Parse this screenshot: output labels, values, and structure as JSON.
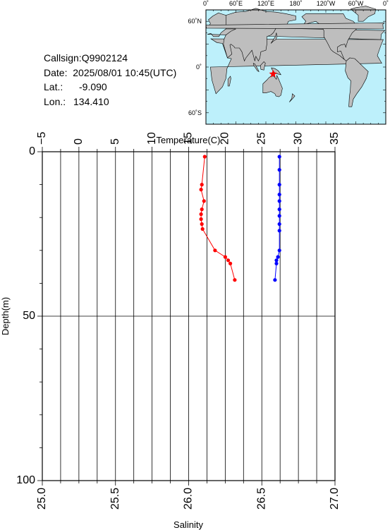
{
  "info": {
    "callsign": "Callsign:Q9902124",
    "date": "Date:  2025/08/01 10:45(UTC)",
    "lat_label": "Lat.:",
    "lat_value": "-9.090",
    "lon_label": "Lon.:",
    "lon_value": "134.410"
  },
  "map": {
    "top_labels": [
      "0˚",
      "60˚E",
      "120˚E",
      "180˚",
      "120˚W",
      "60˚W",
      "0˚"
    ],
    "left_labels": [
      "60˚N",
      "0˚",
      "60˚S"
    ],
    "ocean_color": "#bdf0fb",
    "land_color": "#bebebe",
    "marker_color": "#ff0000",
    "marker_symbol": "star",
    "marker_lon": 134.41,
    "marker_lat": -9.09
  },
  "chart_data": {
    "type": "scatter",
    "title": "",
    "xlabel_top": "Temperature(C)",
    "xlabel_bottom": "Salinity",
    "ylabel": "Depth(m)",
    "temperature_ticks": [
      "−5",
      "0",
      "5",
      "10",
      "15",
      "20",
      "25",
      "30",
      "35"
    ],
    "salinity_ticks": [
      "25.0",
      "25.5",
      "26.0",
      "26.5",
      "27.0"
    ],
    "depth_ticks": [
      "0",
      "50",
      "100"
    ],
    "temperature_range": [
      -5,
      35
    ],
    "salinity_range": [
      25.0,
      27.0
    ],
    "depth_range": [
      0,
      100
    ],
    "y_inverted": true,
    "grid": true,
    "series": [
      {
        "name": "Temperature",
        "axis": "temperature",
        "color": "#ff0000",
        "depth": [
          1.5,
          10,
          11.5,
          15,
          17.5,
          19,
          20.5,
          22,
          23.5,
          30,
          32,
          33,
          34,
          39
        ],
        "values": [
          17.2,
          16.8,
          16.7,
          17.1,
          16.8,
          16.7,
          16.7,
          16.8,
          16.9,
          18.6,
          20.0,
          20.4,
          20.7,
          21.3
        ]
      },
      {
        "name": "Salinity",
        "axis": "salinity",
        "color": "#0000ff",
        "depth": [
          1.5,
          5.5,
          10,
          13,
          15,
          17.5,
          19.5,
          22,
          24,
          30,
          32,
          33,
          34,
          39
        ],
        "values": [
          26.62,
          26.62,
          26.62,
          26.62,
          26.62,
          26.62,
          26.62,
          26.62,
          26.62,
          26.62,
          26.61,
          26.6,
          26.6,
          26.59
        ]
      }
    ]
  }
}
